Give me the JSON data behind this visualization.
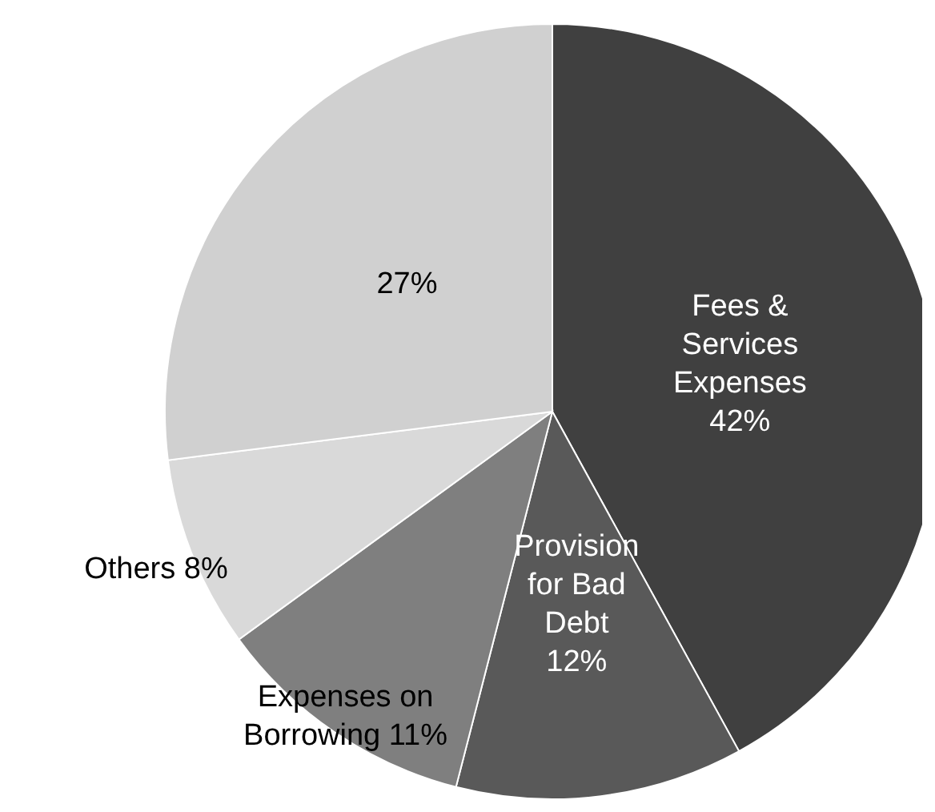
{
  "chart_data": {
    "type": "pie",
    "categories": [
      "Fees & Services Expenses",
      "Provision for Bad Debt",
      "Expenses on Borrowing",
      "Others",
      null
    ],
    "values": [
      42,
      12,
      11,
      8,
      27
    ],
    "value_labels": [
      "42%",
      "12%",
      "11%",
      "8%",
      "27%"
    ],
    "colors": [
      "#404040",
      "#595959",
      "#7f7f7f",
      "#d9d9d9",
      "#d0d0d0"
    ]
  }
}
